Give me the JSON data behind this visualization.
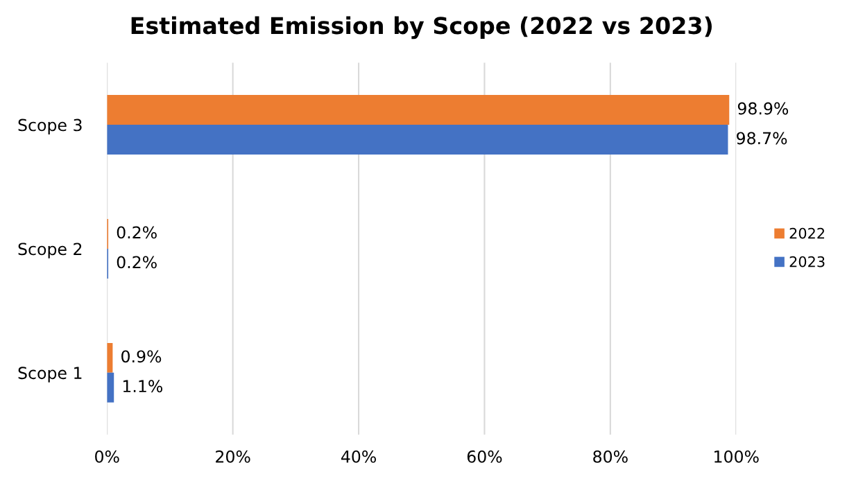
{
  "chart_data": {
    "type": "bar",
    "orientation": "horizontal",
    "title": "Estimated Emission by Scope (2022 vs 2023)",
    "categories": [
      "Scope 3",
      "Scope 2",
      "Scope 1"
    ],
    "series": [
      {
        "name": "2022",
        "color": "#ed7d31",
        "values": [
          98.9,
          0.2,
          0.9
        ],
        "value_labels": [
          "98.9%",
          "0.2%",
          "0.9%"
        ]
      },
      {
        "name": "2023",
        "color": "#4472c4",
        "values": [
          98.7,
          0.2,
          1.1
        ],
        "value_labels": [
          "98.7%",
          "0.2%",
          "1.1%"
        ]
      }
    ],
    "xlim": [
      0,
      100
    ],
    "xticks": [
      {
        "value": 0,
        "label": "0%"
      },
      {
        "value": 20,
        "label": "20%"
      },
      {
        "value": 40,
        "label": "40%"
      },
      {
        "value": 60,
        "label": "60%"
      },
      {
        "value": 80,
        "label": "80%"
      },
      {
        "value": 100,
        "label": "100%"
      }
    ],
    "grid": "x",
    "legend": "right"
  }
}
